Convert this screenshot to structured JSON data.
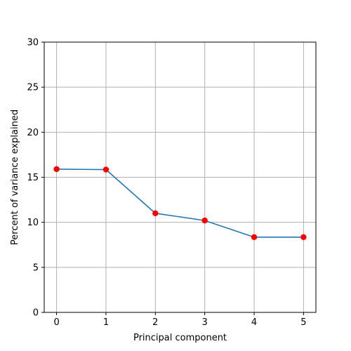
{
  "chart_data": {
    "type": "line",
    "title": "",
    "xlabel": "Principal component",
    "ylabel": "Percent of variance explained",
    "x": [
      0,
      1,
      2,
      3,
      4,
      5
    ],
    "series": [
      {
        "values": [
          15.9,
          15.85,
          11.0,
          10.2,
          8.35,
          8.35
        ]
      }
    ],
    "xlim": [
      -0.25,
      5.25
    ],
    "ylim": [
      0,
      30
    ],
    "xticks": [
      "0",
      "1",
      "2",
      "3",
      "4",
      "5"
    ],
    "yticks": [
      "0",
      "5",
      "10",
      "15",
      "20",
      "25",
      "30"
    ],
    "grid": true,
    "line_color": "#1f77b4",
    "marker_color": "#ff0000"
  }
}
